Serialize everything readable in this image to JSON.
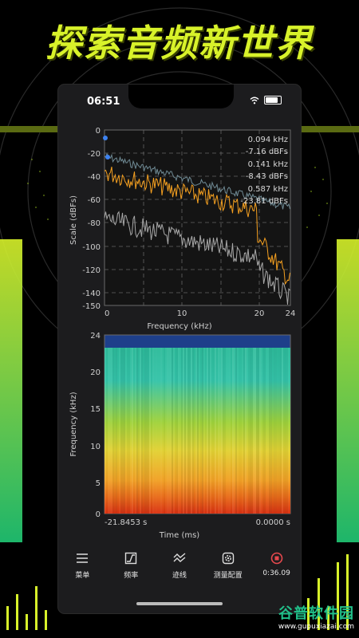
{
  "promo": {
    "headline": "探索音频新世界"
  },
  "status_bar": {
    "time": "06:51"
  },
  "spectrum": {
    "y_label": "Scale (dBFs)",
    "x_label": "Frequency (kHz)",
    "y_ticks": [
      "0",
      "-20",
      "-40",
      "-60",
      "-80",
      "-100",
      "-120",
      "-140",
      "-150"
    ],
    "x_ticks": [
      "0",
      "10",
      "20",
      "24"
    ],
    "readouts": [
      {
        "freq": "0.094 kHz",
        "level": "-7.16 dBFs"
      },
      {
        "freq": "0.141 kHz",
        "level": "-8.43 dBFs"
      },
      {
        "freq": "0.587 kHz",
        "level": "-23.81 dBFs"
      }
    ],
    "colors": {
      "peak": "#6f8a94",
      "current": "#f5a020",
      "average": "#a8a8a8",
      "marker": "#3d82f0"
    }
  },
  "spectrogram": {
    "y_label": "Frequency (kHz)",
    "x_label": "Time (ms)",
    "y_ticks": [
      "24",
      "20",
      "15",
      "10",
      "5",
      "0"
    ],
    "start_time": "-21.8453 s",
    "end_time": "0.0000 s"
  },
  "toolbar": {
    "items": [
      {
        "label": "菜单",
        "icon": "menu-icon"
      },
      {
        "label": "频率",
        "icon": "frequency-icon"
      },
      {
        "label": "迹线",
        "icon": "trace-icon"
      },
      {
        "label": "测量配置",
        "icon": "gear-icon"
      },
      {
        "label": "0:36.09",
        "icon": "stop-record-icon"
      }
    ]
  },
  "watermark": {
    "title": "谷普软件园",
    "url": "www.gupuxiazai.com"
  }
}
